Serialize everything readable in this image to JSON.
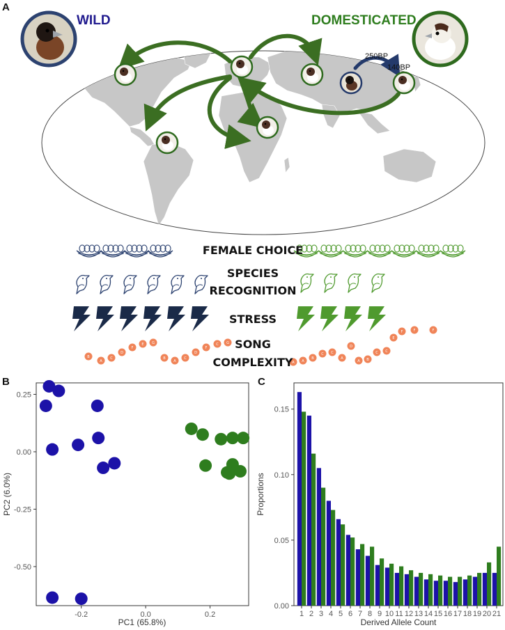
{
  "panels": {
    "a": "A",
    "b": "B",
    "c": "C"
  },
  "groups": {
    "wild": {
      "label": "WILD",
      "color": "#201a8e"
    },
    "domesticated": {
      "label": "DOMESTICATED",
      "color": "#2e7d1e"
    }
  },
  "map": {
    "arrow_color": "#3b6e22",
    "dates": {
      "first": "250BP",
      "second": "140BP"
    }
  },
  "traits": {
    "female_choice": {
      "label": "FEMALE CHOICE",
      "wild_count": 4,
      "dom_count": 7
    },
    "species_recognition": {
      "line1": "SPECIES",
      "line2": "RECOGNITION",
      "wild_count": 6,
      "dom_count": 4
    },
    "stress": {
      "label": "STRESS",
      "wild_count": 6,
      "dom_count": 4
    },
    "song_complexity": {
      "line1": "SONG",
      "line2": "COMPLEXITY",
      "wild_syllables": [
        "B",
        "A",
        "C",
        "D",
        "F",
        "E",
        "G",
        "B",
        "A",
        "C",
        "D",
        "F",
        "C",
        "G"
      ],
      "dom_syllables": [
        "A",
        "A",
        "B",
        "C",
        "C",
        "A",
        "D",
        "A",
        "B",
        "C",
        "C",
        "E",
        "F",
        "F",
        "F"
      ],
      "syllable_color": "#f08458"
    }
  },
  "chart_data": [
    {
      "type": "scatter",
      "xlabel": "PC1 (65.8%)",
      "ylabel": "PC2 (6.0%)",
      "xlim": [
        -0.34,
        0.32
      ],
      "ylim": [
        -0.67,
        0.3
      ],
      "xticks": [
        -0.2,
        0.0,
        0.2
      ],
      "yticks": [
        0.25,
        0.0,
        -0.25,
        -0.5
      ],
      "xtick_labels": [
        "-0.2",
        "0.0",
        "0.2"
      ],
      "ytick_labels": [
        "0.25",
        "0.00",
        "-0.25",
        "-0.50"
      ],
      "grid": false,
      "series": [
        {
          "group": "wild",
          "color": "#1c12a8",
          "x": [
            -0.3,
            -0.31,
            -0.27,
            -0.15,
            -0.29,
            -0.21,
            -0.147,
            -0.132,
            -0.097,
            -0.29,
            -0.2
          ],
          "y": [
            0.285,
            0.2,
            0.265,
            0.2,
            0.01,
            0.03,
            0.06,
            -0.07,
            -0.05,
            -0.635,
            -0.64
          ]
        },
        {
          "group": "domesticated",
          "color": "#2e7d1e",
          "x": [
            0.142,
            0.177,
            0.234,
            0.27,
            0.303,
            0.186,
            0.27,
            0.26,
            0.294,
            0.253
          ],
          "y": [
            0.1,
            0.075,
            0.055,
            0.06,
            0.06,
            -0.06,
            -0.055,
            -0.095,
            -0.085,
            -0.09
          ]
        }
      ]
    },
    {
      "type": "bar",
      "xlabel": "Derived Allele Count",
      "ylabel": "Proportions",
      "ylim": [
        0,
        0.17
      ],
      "yticks": [
        0.0,
        0.05,
        0.1,
        0.15
      ],
      "ytick_labels": [
        "0.00",
        "0.05",
        "0.10",
        "0.15"
      ],
      "grid": false,
      "categories": [
        "1",
        "2",
        "3",
        "4",
        "5",
        "6",
        "7",
        "8",
        "9",
        "10",
        "11",
        "12",
        "13",
        "14",
        "15",
        "16",
        "17",
        "18",
        "19",
        "20",
        "21"
      ],
      "series": [
        {
          "group": "wild",
          "color": "#1c12a8",
          "values": [
            0.163,
            0.145,
            0.105,
            0.08,
            0.066,
            0.054,
            0.043,
            0.038,
            0.031,
            0.029,
            0.025,
            0.024,
            0.022,
            0.02,
            0.019,
            0.019,
            0.018,
            0.02,
            0.022,
            0.025,
            0.025
          ]
        },
        {
          "group": "domesticated",
          "color": "#2e7d1e",
          "values": [
            0.148,
            0.116,
            0.09,
            0.073,
            0.062,
            0.052,
            0.047,
            0.045,
            0.036,
            0.032,
            0.03,
            0.027,
            0.025,
            0.024,
            0.023,
            0.022,
            0.022,
            0.023,
            0.025,
            0.033,
            0.045
          ]
        }
      ]
    }
  ]
}
